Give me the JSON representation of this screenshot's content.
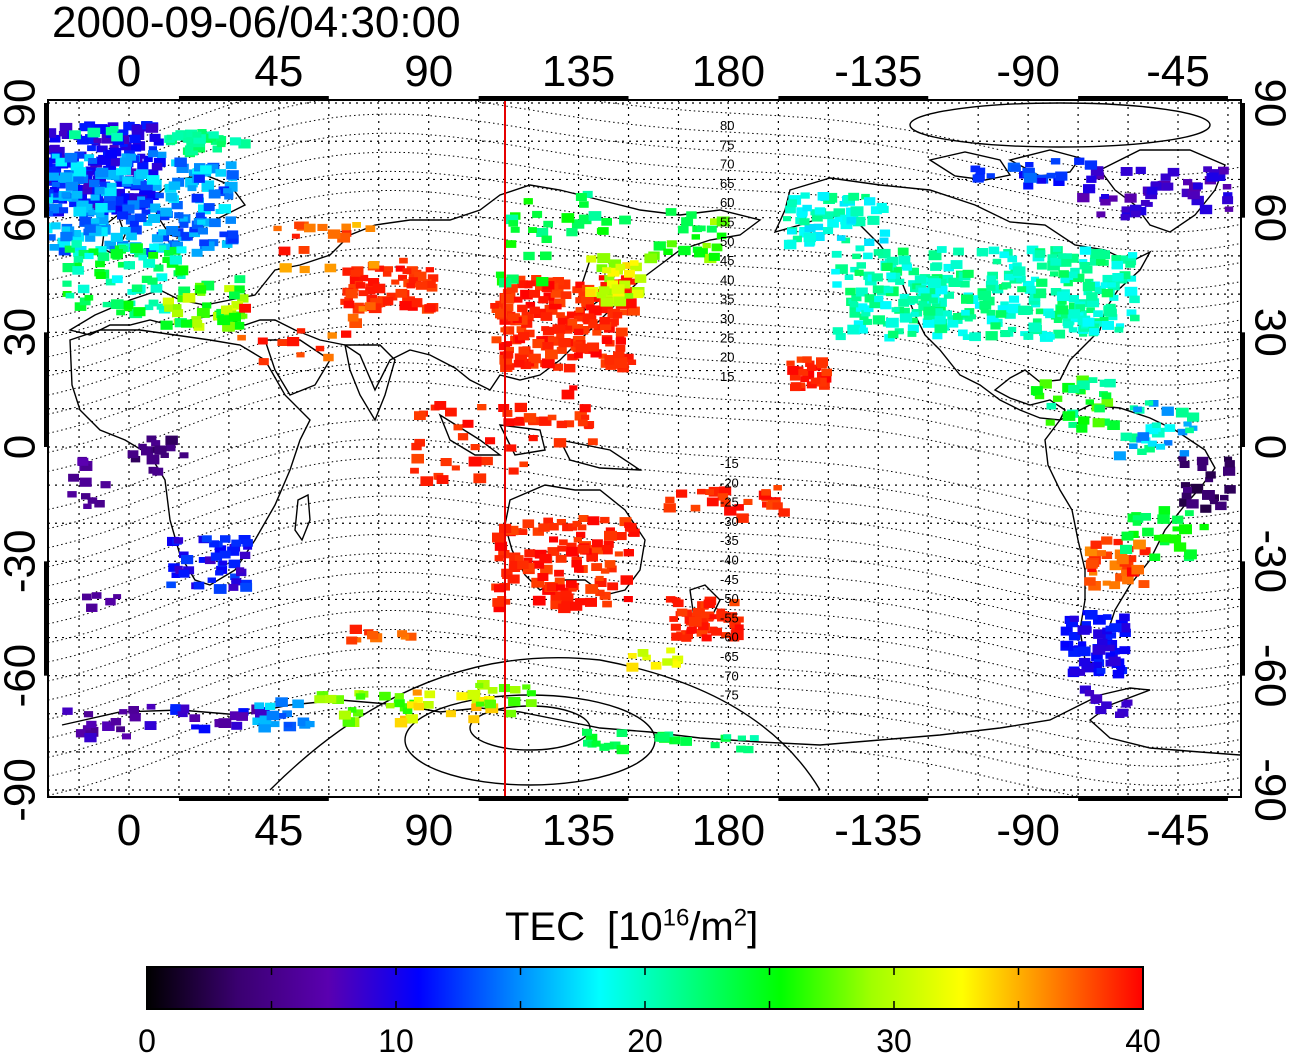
{
  "title": "2000-09-06/04:30:00",
  "map": {
    "lon_ticks_top": [
      "0",
      "45",
      "90",
      "135",
      "180",
      "-135",
      "-90",
      "-45"
    ],
    "lon_ticks_bottom": [
      "0",
      "45",
      "90",
      "135",
      "180",
      "-135",
      "-90",
      "-45"
    ],
    "lat_ticks_left": [
      "90",
      "60",
      "30",
      "0",
      "-30",
      "-60",
      "-90"
    ],
    "lat_ticks_right": [
      "90",
      "60",
      "30",
      "0",
      "-30",
      "-60",
      "-90"
    ],
    "magnetic_latitude_labels_north": [
      "80",
      "75",
      "70",
      "65",
      "60",
      "55",
      "50",
      "45",
      "40",
      "35",
      "30",
      "25",
      "20",
      "15"
    ],
    "magnetic_latitude_labels_south": [
      "-15",
      "-20",
      "-25",
      "-30",
      "-35",
      "-40",
      "-45",
      "-50",
      "-55",
      "-60",
      "-65",
      "-70",
      "-75"
    ],
    "subsolar_meridian_color": "#e60000"
  },
  "colorbar": {
    "title_prefix": "TEC",
    "title_unit_open": "[10",
    "title_unit_exp": "16",
    "title_unit_mid": "/m",
    "title_unit_exp2": "2",
    "title_unit_close": "]",
    "min": 0,
    "max": 40,
    "tick_labels": [
      "0",
      "10",
      "20",
      "30",
      "40"
    ],
    "colors": [
      "#000000",
      "#3a0070",
      "#5a00b0",
      "#0000ff",
      "#0080ff",
      "#00ffff",
      "#00ff80",
      "#00ff00",
      "#a0ff00",
      "#ffff00",
      "#ff8000",
      "#ff0000"
    ]
  }
}
